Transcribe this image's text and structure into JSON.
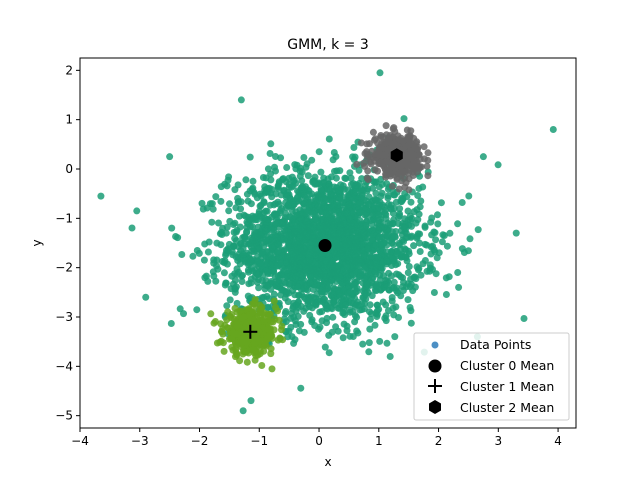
{
  "chart_data": {
    "type": "scatter",
    "title": "GMM, k = 3",
    "xlabel": "x",
    "ylabel": "y",
    "xlim": [
      -4,
      4.3
    ],
    "ylim": [
      -5.25,
      2.25
    ],
    "xticks": [
      -4,
      -3,
      -2,
      -1,
      0,
      1,
      2,
      3,
      4
    ],
    "yticks": [
      -5,
      -4,
      -3,
      -2,
      -1,
      0,
      1,
      2
    ],
    "grid": false,
    "legend_position": "lower-right",
    "legend": [
      "Data Points",
      "Cluster 0 Mean",
      "Cluster 1 Mean",
      "Cluster 2 Mean"
    ],
    "clusters": [
      {
        "id": 0,
        "mean": [
          0.1,
          -1.55
        ],
        "sd": [
          0.8,
          0.75
        ],
        "n": 2600,
        "color": "#1b9e77",
        "marker": "circle"
      },
      {
        "id": 1,
        "mean": [
          -1.15,
          -3.3
        ],
        "sd": [
          0.22,
          0.22
        ],
        "n": 450,
        "color": "#66a61e",
        "marker": "plus"
      },
      {
        "id": 2,
        "mean": [
          1.3,
          0.28
        ],
        "sd": [
          0.2,
          0.2
        ],
        "n": 450,
        "color": "#666666",
        "marker": "hexagon"
      }
    ],
    "outliers": [
      [
        -3.65,
        -0.55
      ],
      [
        3.92,
        0.8
      ],
      [
        1.02,
        1.95
      ],
      [
        -1.27,
        -4.9
      ],
      [
        3.43,
        -3.03
      ],
      [
        -1.3,
        1.4
      ],
      [
        2.75,
        0.25
      ],
      [
        -2.5,
        0.25
      ],
      [
        3.3,
        -1.3
      ],
      [
        -3.05,
        -0.85
      ],
      [
        2.65,
        -3.4
      ],
      [
        -2.9,
        -2.6
      ]
    ],
    "legend_marker_color": "#4c8fc4",
    "mean_marker_color": "#000000"
  }
}
